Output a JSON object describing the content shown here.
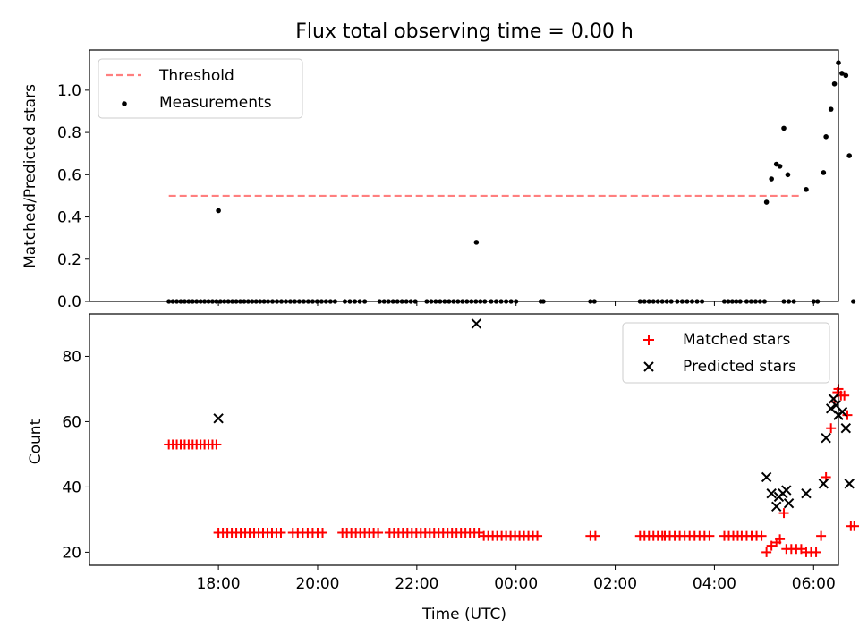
{
  "chart_data": [
    {
      "type": "scatter",
      "title": "Flux total observing time = 0.00 h",
      "ylabel": "Matched/Predicted stars",
      "xlabel": "",
      "x_unit": "hours since 17:00 UTC",
      "xlim": [
        -1.6,
        13.5
      ],
      "ylim": [
        0,
        1.19
      ],
      "yticks": [
        "0.0",
        "0.2",
        "0.4",
        "0.6",
        "0.8",
        "1.0"
      ],
      "legend": {
        "placement": "top-left",
        "threshold_label": "Threshold",
        "measurements_label": "Measurements"
      },
      "threshold": {
        "name": "Threshold",
        "y": 0.5,
        "x": [
          0.0,
          12.75
        ],
        "color": "#ff7f7f"
      },
      "series": [
        {
          "name": "Measurements",
          "color": "#000000",
          "points": [
            [
              1.0,
              0.43
            ],
            [
              6.2,
              0.28
            ],
            [
              12.05,
              0.47
            ],
            [
              12.15,
              0.58
            ],
            [
              12.25,
              0.65
            ],
            [
              12.32,
              0.64
            ],
            [
              12.4,
              0.82
            ],
            [
              12.48,
              0.6
            ],
            [
              12.85,
              0.53
            ],
            [
              13.2,
              0.61
            ],
            [
              13.25,
              0.78
            ],
            [
              13.35,
              0.91
            ],
            [
              13.42,
              1.03
            ],
            [
              13.5,
              1.13
            ],
            [
              13.57,
              1.08
            ],
            [
              13.65,
              1.07
            ],
            [
              13.72,
              0.69
            ]
          ],
          "zero_runs": [
            [
              0.0,
              1.92,
              0.08
            ],
            [
              2.0,
              3.35,
              0.09
            ],
            [
              3.55,
              4.0,
              0.1
            ],
            [
              4.25,
              5.0,
              0.09
            ],
            [
              5.2,
              6.4,
              0.09
            ],
            [
              6.5,
              7.0,
              0.1
            ],
            [
              7.5,
              7.55,
              0.05
            ],
            [
              8.5,
              8.58,
              0.08
            ],
            [
              9.5,
              10.15,
              0.09
            ],
            [
              10.25,
              10.75,
              0.1
            ],
            [
              11.2,
              11.55,
              0.08
            ],
            [
              11.65,
              12.05,
              0.09
            ],
            [
              12.4,
              12.6,
              0.1
            ],
            [
              13.0,
              13.15,
              0.08
            ],
            [
              13.8,
              13.8,
              0.1
            ]
          ]
        }
      ]
    },
    {
      "type": "scatter",
      "title": "",
      "ylabel": "Count",
      "xlabel": "Time (UTC)",
      "x_unit": "hours since 17:00 UTC",
      "xlim": [
        -1.6,
        13.5
      ],
      "ylim": [
        16,
        93
      ],
      "yticks": [
        "20",
        "40",
        "60",
        "80"
      ],
      "xticks": [
        "18:00",
        "20:00",
        "22:00",
        "00:00",
        "02:00",
        "04:00",
        "06:00"
      ],
      "legend": {
        "placement": "top-right",
        "matched_label": "Matched stars",
        "predicted_label": "Predicted stars"
      },
      "series": [
        {
          "name": "Matched stars",
          "marker": "+",
          "color": "#ff0000",
          "runs": [
            [
              0.0,
              1.0,
              0.08,
              53
            ],
            [
              1.0,
              2.3,
              0.09,
              26
            ],
            [
              2.5,
              3.1,
              0.1,
              26
            ],
            [
              3.5,
              4.25,
              0.09,
              26
            ],
            [
              4.45,
              6.3,
              0.09,
              26
            ],
            [
              6.35,
              7.5,
              0.09,
              25
            ],
            [
              8.5,
              8.6,
              0.1,
              25
            ],
            [
              9.5,
              10.0,
              0.09,
              25
            ],
            [
              10.0,
              10.95,
              0.1,
              25
            ],
            [
              11.2,
              11.55,
              0.09,
              25
            ],
            [
              11.55,
              12.0,
              0.1,
              25
            ]
          ],
          "points": [
            [
              12.05,
              20
            ],
            [
              12.15,
              22
            ],
            [
              12.25,
              23
            ],
            [
              12.32,
              24
            ],
            [
              12.4,
              32
            ],
            [
              12.45,
              21
            ],
            [
              12.55,
              21
            ],
            [
              12.65,
              21
            ],
            [
              12.75,
              21
            ],
            [
              12.85,
              20
            ],
            [
              12.95,
              20
            ],
            [
              13.05,
              20
            ],
            [
              13.15,
              25
            ],
            [
              13.25,
              43
            ],
            [
              13.35,
              58
            ],
            [
              13.42,
              66
            ],
            [
              13.48,
              69
            ],
            [
              13.5,
              70
            ],
            [
              13.55,
              68
            ],
            [
              13.62,
              68
            ],
            [
              13.68,
              62
            ],
            [
              13.75,
              28
            ],
            [
              13.82,
              28
            ]
          ]
        },
        {
          "name": "Predicted stars",
          "marker": "x",
          "color": "#000000",
          "points": [
            [
              1.0,
              61
            ],
            [
              6.2,
              90
            ],
            [
              12.05,
              43
            ],
            [
              12.15,
              38
            ],
            [
              12.25,
              34
            ],
            [
              12.3,
              37
            ],
            [
              12.38,
              38
            ],
            [
              12.45,
              39
            ],
            [
              12.5,
              35
            ],
            [
              12.85,
              38
            ],
            [
              13.2,
              41
            ],
            [
              13.25,
              55
            ],
            [
              13.35,
              64
            ],
            [
              13.4,
              67
            ],
            [
              13.45,
              65
            ],
            [
              13.5,
              62
            ],
            [
              13.58,
              63
            ],
            [
              13.65,
              58
            ],
            [
              13.72,
              41
            ]
          ]
        }
      ]
    }
  ]
}
